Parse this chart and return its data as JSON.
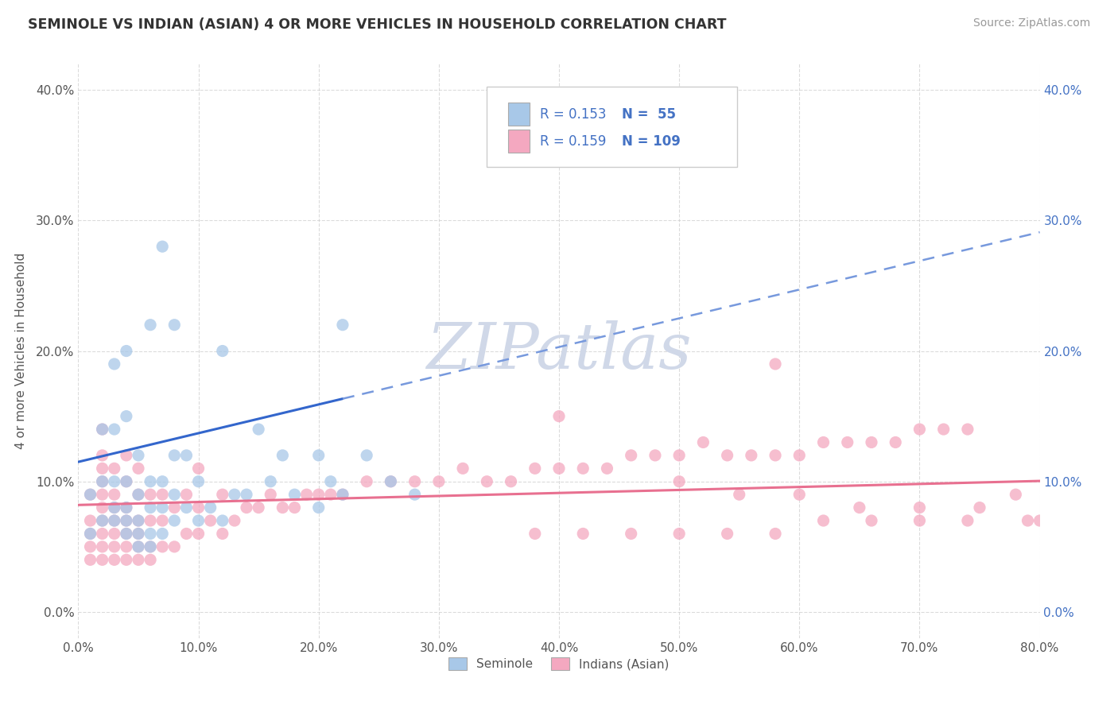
{
  "title": "SEMINOLE VS INDIAN (ASIAN) 4 OR MORE VEHICLES IN HOUSEHOLD CORRELATION CHART",
  "source": "Source: ZipAtlas.com",
  "ylabel": "4 or more Vehicles in Household",
  "seminole_color": "#a8c8e8",
  "indian_color": "#f4a8c0",
  "seminole_line_color": "#3366cc",
  "seminole_dash_color": "#7799dd",
  "indian_line_color": "#e87090",
  "watermark_color": "#d0d8e8",
  "background_color": "#ffffff",
  "grid_color": "#cccccc",
  "xlim": [
    0.0,
    0.8
  ],
  "ylim": [
    -0.02,
    0.42
  ],
  "title_color": "#333333",
  "source_color": "#999999",
  "tick_color": "#555555",
  "right_tick_color": "#4472c4",
  "legend_box_color": "#eeeeee",
  "legend_text_color": "#4472c4",
  "marker_size": 120,
  "marker_alpha": 0.75,
  "sem_line_intercept": 0.115,
  "sem_line_slope": 0.22,
  "sem_line_xmax": 0.22,
  "ind_line_intercept": 0.082,
  "ind_line_slope": 0.023,
  "ind_line_xmax": 0.8,
  "seminole_x": [
    0.01,
    0.01,
    0.02,
    0.02,
    0.02,
    0.03,
    0.03,
    0.03,
    0.03,
    0.03,
    0.04,
    0.04,
    0.04,
    0.04,
    0.04,
    0.04,
    0.05,
    0.05,
    0.05,
    0.05,
    0.05,
    0.06,
    0.06,
    0.06,
    0.06,
    0.06,
    0.07,
    0.07,
    0.07,
    0.07,
    0.08,
    0.08,
    0.08,
    0.08,
    0.09,
    0.09,
    0.1,
    0.1,
    0.11,
    0.12,
    0.12,
    0.13,
    0.14,
    0.15,
    0.16,
    0.17,
    0.18,
    0.2,
    0.2,
    0.21,
    0.22,
    0.22,
    0.24,
    0.26,
    0.28
  ],
  "seminole_y": [
    0.06,
    0.09,
    0.07,
    0.1,
    0.14,
    0.07,
    0.08,
    0.1,
    0.14,
    0.19,
    0.06,
    0.07,
    0.08,
    0.1,
    0.15,
    0.2,
    0.05,
    0.06,
    0.07,
    0.09,
    0.12,
    0.05,
    0.06,
    0.08,
    0.1,
    0.22,
    0.06,
    0.08,
    0.1,
    0.28,
    0.07,
    0.09,
    0.12,
    0.22,
    0.08,
    0.12,
    0.07,
    0.1,
    0.08,
    0.07,
    0.2,
    0.09,
    0.09,
    0.14,
    0.1,
    0.12,
    0.09,
    0.08,
    0.12,
    0.1,
    0.09,
    0.22,
    0.12,
    0.1,
    0.09
  ],
  "indian_x": [
    0.01,
    0.01,
    0.01,
    0.01,
    0.01,
    0.02,
    0.02,
    0.02,
    0.02,
    0.02,
    0.02,
    0.02,
    0.02,
    0.02,
    0.02,
    0.03,
    0.03,
    0.03,
    0.03,
    0.03,
    0.03,
    0.03,
    0.04,
    0.04,
    0.04,
    0.04,
    0.04,
    0.04,
    0.04,
    0.05,
    0.05,
    0.05,
    0.05,
    0.05,
    0.05,
    0.06,
    0.06,
    0.06,
    0.06,
    0.07,
    0.07,
    0.07,
    0.08,
    0.08,
    0.09,
    0.09,
    0.1,
    0.1,
    0.1,
    0.11,
    0.12,
    0.12,
    0.13,
    0.14,
    0.15,
    0.16,
    0.17,
    0.18,
    0.19,
    0.2,
    0.21,
    0.22,
    0.24,
    0.26,
    0.28,
    0.3,
    0.32,
    0.34,
    0.36,
    0.38,
    0.4,
    0.4,
    0.42,
    0.44,
    0.46,
    0.48,
    0.5,
    0.52,
    0.54,
    0.56,
    0.58,
    0.58,
    0.6,
    0.62,
    0.64,
    0.66,
    0.68,
    0.7,
    0.72,
    0.74,
    0.5,
    0.55,
    0.6,
    0.65,
    0.7,
    0.75,
    0.78,
    0.79,
    0.8,
    0.38,
    0.42,
    0.46,
    0.5,
    0.54,
    0.58,
    0.62,
    0.66,
    0.7,
    0.74
  ],
  "indian_y": [
    0.04,
    0.05,
    0.06,
    0.07,
    0.09,
    0.04,
    0.05,
    0.06,
    0.07,
    0.08,
    0.09,
    0.1,
    0.11,
    0.12,
    0.14,
    0.04,
    0.05,
    0.06,
    0.07,
    0.08,
    0.09,
    0.11,
    0.04,
    0.05,
    0.06,
    0.07,
    0.08,
    0.1,
    0.12,
    0.04,
    0.05,
    0.06,
    0.07,
    0.09,
    0.11,
    0.04,
    0.05,
    0.07,
    0.09,
    0.05,
    0.07,
    0.09,
    0.05,
    0.08,
    0.06,
    0.09,
    0.06,
    0.08,
    0.11,
    0.07,
    0.06,
    0.09,
    0.07,
    0.08,
    0.08,
    0.09,
    0.08,
    0.08,
    0.09,
    0.09,
    0.09,
    0.09,
    0.1,
    0.1,
    0.1,
    0.1,
    0.11,
    0.1,
    0.1,
    0.11,
    0.11,
    0.15,
    0.11,
    0.11,
    0.12,
    0.12,
    0.12,
    0.13,
    0.12,
    0.12,
    0.12,
    0.19,
    0.12,
    0.13,
    0.13,
    0.13,
    0.13,
    0.14,
    0.14,
    0.14,
    0.1,
    0.09,
    0.09,
    0.08,
    0.08,
    0.08,
    0.09,
    0.07,
    0.07,
    0.06,
    0.06,
    0.06,
    0.06,
    0.06,
    0.06,
    0.07,
    0.07,
    0.07,
    0.07
  ]
}
